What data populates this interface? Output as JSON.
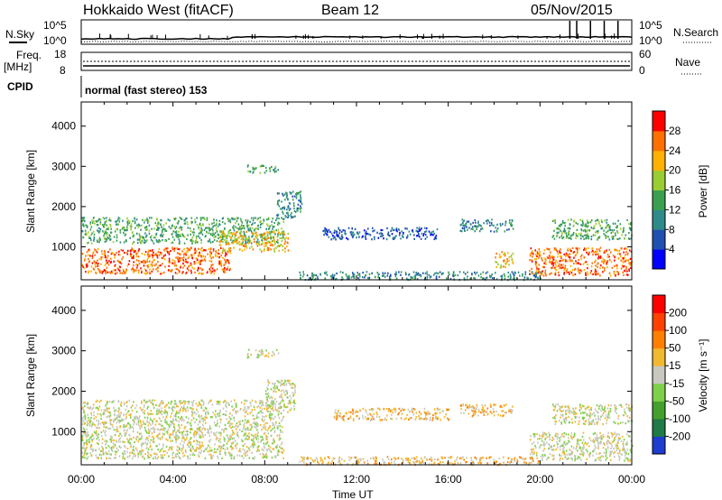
{
  "header": {
    "station": "Hokkaido West (fitACF)",
    "beam": "Beam 12",
    "date": "05/Nov/2015"
  },
  "noise_panel": {
    "left_label": "N.Sky",
    "right_label": "N.Search",
    "left_ticks": [
      "10^5",
      "10^0"
    ],
    "right_ticks": [
      "10^5",
      "10^0"
    ]
  },
  "freq_panel": {
    "left_label_1": "Freq.",
    "left_label_2": "[MHz]",
    "right_label": "Nave",
    "left_ticks": [
      "18",
      "8"
    ],
    "right_ticks": [
      "60",
      "0"
    ]
  },
  "cpid": {
    "label": "CPID",
    "mode": "normal (fast stereo) 153"
  },
  "x_ticks": [
    "00:00",
    "04:00",
    "08:00",
    "12:00",
    "16:00",
    "20:00",
    "00:00"
  ],
  "x_label": "Time UT",
  "chart_data": [
    {
      "type": "heatmap",
      "panel": "power",
      "ylabel": "Slant Range [km]",
      "ylim": [
        180,
        4600
      ],
      "yticks": [
        "1000",
        "2000",
        "3000",
        "4000"
      ],
      "xlim_hours": [
        0,
        24
      ],
      "colorbar_label": "Power [dB]",
      "colorbar_ticks": [
        "4",
        "8",
        "12",
        "16",
        "20",
        "24",
        "28"
      ],
      "colorbar_range": [
        0,
        30
      ],
      "colors": [
        "#0000ff",
        "#1f4fb0",
        "#2f8a8a",
        "#3aa050",
        "#9acd32",
        "#ffb000",
        "#ff7000",
        "#ff0000"
      ],
      "regions": [
        {
          "t": [
            0,
            8.8
          ],
          "r": [
            1100,
            1750
          ],
          "level": 3
        },
        {
          "t": [
            0,
            6.5
          ],
          "r": [
            350,
            1000
          ],
          "level": 6
        },
        {
          "t": [
            6.0,
            9.0
          ],
          "r": [
            900,
            1400
          ],
          "level": 5
        },
        {
          "t": [
            7.2,
            8.6
          ],
          "r": [
            2850,
            3050
          ],
          "level": 3
        },
        {
          "t": [
            8.5,
            9.6
          ],
          "r": [
            1700,
            2400
          ],
          "level": 2
        },
        {
          "t": [
            10.5,
            15.5
          ],
          "r": [
            1200,
            1500
          ],
          "level": 1
        },
        {
          "t": [
            16.5,
            18.8
          ],
          "r": [
            1400,
            1700
          ],
          "level": 2
        },
        {
          "t": [
            18.0,
            18.8
          ],
          "r": [
            500,
            900
          ],
          "level": 5
        },
        {
          "t": [
            19.5,
            24
          ],
          "r": [
            300,
            1000
          ],
          "level": 6
        },
        {
          "t": [
            20.5,
            24
          ],
          "r": [
            1200,
            1700
          ],
          "level": 3
        },
        {
          "t": [
            9.5,
            20
          ],
          "r": [
            200,
            400
          ],
          "level": 2
        }
      ]
    },
    {
      "type": "heatmap",
      "panel": "velocity",
      "ylabel": "Slant Range [km]",
      "ylim": [
        180,
        4600
      ],
      "yticks": [
        "1000",
        "2000",
        "3000",
        "4000"
      ],
      "xlim_hours": [
        0,
        24
      ],
      "colorbar_label": "Velocity [m s⁻¹]",
      "colorbar_ticks": [
        "200",
        "100",
        "50",
        "15",
        "-15",
        "-50",
        "-100",
        "-200"
      ],
      "colorbar_range": [
        -250,
        250
      ],
      "colors": [
        "#1e3cd0",
        "#1e7a46",
        "#43a02c",
        "#7ed04a",
        "#c8c8c0",
        "#f2b830",
        "#ff8000",
        "#ff4000",
        "#ff0000"
      ],
      "regions": [
        {
          "t": [
            0,
            8.8
          ],
          "r": [
            350,
            1800
          ],
          "level": 4
        },
        {
          "t": [
            7.2,
            8.6
          ],
          "r": [
            2850,
            3050
          ],
          "level": 4
        },
        {
          "t": [
            8.0,
            9.3
          ],
          "r": [
            1500,
            2300
          ],
          "level": 4
        },
        {
          "t": [
            11.0,
            16.0
          ],
          "r": [
            1300,
            1600
          ],
          "level": 5
        },
        {
          "t": [
            16.5,
            18.8
          ],
          "r": [
            1400,
            1700
          ],
          "level": 5
        },
        {
          "t": [
            19.5,
            24
          ],
          "r": [
            300,
            1000
          ],
          "level": 4
        },
        {
          "t": [
            20.5,
            24
          ],
          "r": [
            1200,
            1700
          ],
          "level": 4
        },
        {
          "t": [
            9.5,
            20
          ],
          "r": [
            200,
            400
          ],
          "level": 5
        }
      ]
    }
  ]
}
